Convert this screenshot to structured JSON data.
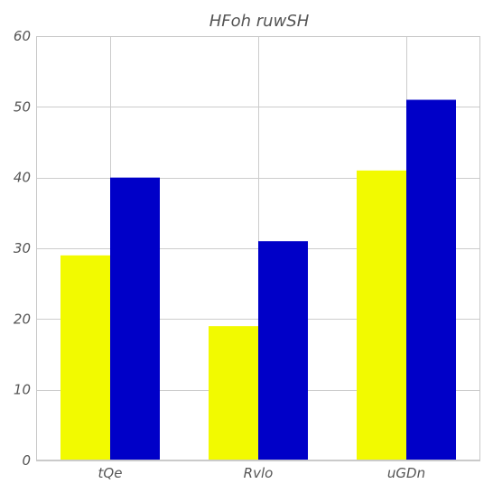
{
  "chart_data": {
    "type": "bar",
    "title": "HFoh ruwSH",
    "xlabel": "",
    "ylabel": "",
    "categories": [
      "tQe",
      "Rvlo",
      "uGDn"
    ],
    "series": [
      {
        "values": [
          29,
          19,
          41
        ],
        "color": "#f2fa00"
      },
      {
        "values": [
          40,
          31,
          51
        ],
        "color": "#0000c8"
      }
    ],
    "ylim": [
      0,
      60
    ],
    "yticks": [
      0,
      10,
      20,
      30,
      40,
      50,
      60
    ],
    "grid": true,
    "legend": "none"
  }
}
